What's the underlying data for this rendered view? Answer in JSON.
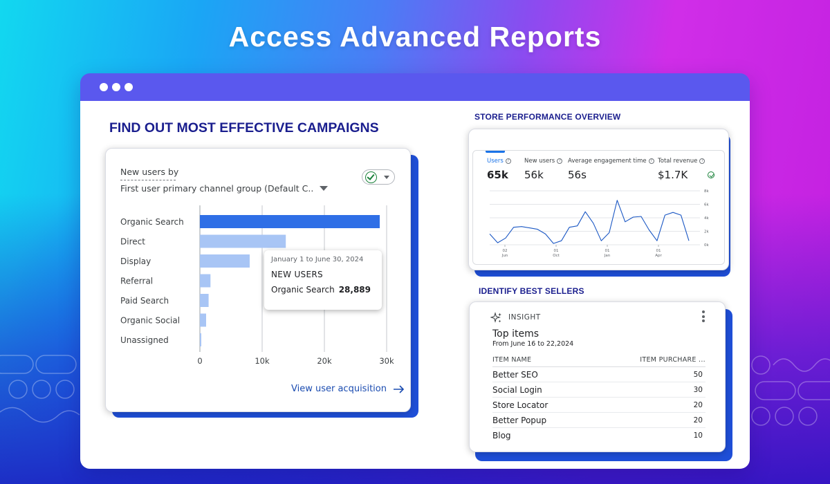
{
  "headline": "Access Advanced Reports",
  "colors": {
    "accent": "#1a1e8e",
    "bar_highlight": "#2f6fe6",
    "bar_normal": "#a8c5f5",
    "line": "#1a57c4",
    "window_bar": "#5a58ee"
  },
  "window": {
    "dots": 3
  },
  "campaigns": {
    "section_title": "FIND OUT MOST EFFECTIVE CAMPAIGNS",
    "card": {
      "label_line1": "New users by",
      "label_line2": "First user primary channel group (Default C..",
      "compare_icon": "check-circle-icon",
      "link_label": "View user acquisition",
      "link_icon": "arrow-right-icon"
    },
    "tooltip": {
      "date_range": "January 1 to June 30, 2024",
      "metric": "NEW USERS",
      "category": "Organic Search",
      "value": "28,889"
    }
  },
  "store": {
    "section_title": "STORE PERFORMANCE OVERVIEW",
    "metrics": [
      {
        "label": "Users",
        "value": "65k",
        "active": true
      },
      {
        "label": "New users",
        "value": "56k",
        "active": false
      },
      {
        "label": "Average engagement time",
        "value": "56s",
        "active": false
      },
      {
        "label": "Total revenue",
        "value": "$1.7K",
        "active": false
      }
    ],
    "help_icon": "question-circle-icon",
    "status_icon": "check-circle-icon"
  },
  "sellers": {
    "section_title": "IDENTIFY BEST SELLERS",
    "insight_icon": "sparkle-icon",
    "insight_label": "INSIGHT",
    "menu_icon": "more-vert-icon",
    "title": "Top items",
    "subtitle": "From June 16 to 22,2024",
    "columns": [
      "ITEM NAME",
      "ITEM PURCHARE ..."
    ],
    "rows": [
      {
        "name": "Better SEO",
        "value": "50"
      },
      {
        "name": "Social Login",
        "value": "30"
      },
      {
        "name": "Store Locator",
        "value": "20"
      },
      {
        "name": "Better Popup",
        "value": "20"
      },
      {
        "name": "Blog",
        "value": "10"
      }
    ]
  },
  "chart_data": [
    {
      "type": "bar",
      "orientation": "horizontal",
      "categories": [
        "Organic Search",
        "Direct",
        "Display",
        "Referral",
        "Paid Search",
        "Organic Social",
        "Unassigned"
      ],
      "values": [
        28889,
        13800,
        8000,
        1700,
        1400,
        1000,
        200
      ],
      "highlight_index": 0,
      "xlim": [
        0,
        30000
      ],
      "xticks": [
        "0",
        "10k",
        "20k",
        "30k"
      ],
      "grid": "vertical"
    },
    {
      "type": "line",
      "series": [
        {
          "values": [
            1.6,
            0.3,
            1.0,
            2.6,
            2.7,
            2.5,
            2.3,
            1.6,
            0.2,
            0.6,
            2.6,
            2.8,
            4.9,
            3.2,
            0.6,
            1.8,
            6.6,
            3.4,
            4.1,
            4.2,
            2.2,
            0.6,
            4.4,
            4.8,
            4.4,
            0.6
          ]
        }
      ],
      "x_tick_labels": [
        [
          "02",
          "Jun"
        ],
        [
          "01",
          "Oct"
        ],
        [
          "01",
          "Jan"
        ],
        [
          "01",
          "Apr"
        ]
      ],
      "y_tick_labels": [
        "8k",
        "6k",
        "4k",
        "2k",
        "0k"
      ],
      "ylim": [
        0,
        8
      ],
      "grid": "horizontal"
    }
  ]
}
